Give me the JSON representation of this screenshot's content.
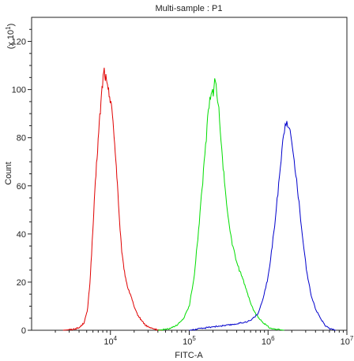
{
  "chart_data": {
    "type": "line",
    "title": "Multi-sample : P1",
    "xlabel": "FITC-A",
    "ylabel": "Count",
    "y_multiplier": {
      "prefix": "(x 10",
      "exponent": "1",
      "suffix": ")"
    },
    "x_scale": "log",
    "xlim": [
      1000,
      10000000
    ],
    "ylim": [
      0,
      130
    ],
    "y_ticks": [
      0,
      20,
      40,
      60,
      80,
      100,
      120
    ],
    "x_ticks": [
      {
        "value": 10000,
        "base": "10",
        "exp": "4"
      },
      {
        "value": 100000,
        "base": "10",
        "exp": "5"
      },
      {
        "value": 1000000,
        "base": "10",
        "exp": "6"
      },
      {
        "value": 10000000,
        "base": "10",
        "exp": "7"
      }
    ],
    "grid": false,
    "series": [
      {
        "color": "#e00000",
        "points": [
          [
            2500,
            0
          ],
          [
            3200,
            0.3
          ],
          [
            4000,
            1
          ],
          [
            4600,
            3
          ],
          [
            5100,
            8
          ],
          [
            5500,
            20
          ],
          [
            5900,
            38
          ],
          [
            6300,
            55
          ],
          [
            6700,
            70
          ],
          [
            7200,
            85
          ],
          [
            7600,
            95
          ],
          [
            8000,
            104
          ],
          [
            8300,
            108
          ],
          [
            8700,
            105
          ],
          [
            9200,
            100
          ],
          [
            9700,
            98
          ],
          [
            10300,
            95
          ],
          [
            10800,
            85
          ],
          [
            11500,
            75
          ],
          [
            12300,
            60
          ],
          [
            13200,
            42
          ],
          [
            14200,
            30
          ],
          [
            15500,
            22
          ],
          [
            16800,
            17
          ],
          [
            18400,
            14
          ],
          [
            20300,
            9
          ],
          [
            22500,
            6
          ],
          [
            25000,
            4
          ],
          [
            28000,
            2
          ],
          [
            32000,
            1
          ],
          [
            38000,
            0.3
          ],
          [
            45000,
            0
          ]
        ]
      },
      {
        "color": "#00dd00",
        "points": [
          [
            40000,
            0
          ],
          [
            55000,
            0.5
          ],
          [
            70000,
            2
          ],
          [
            85000,
            5
          ],
          [
            100000,
            10
          ],
          [
            115000,
            22
          ],
          [
            130000,
            40
          ],
          [
            145000,
            58
          ],
          [
            160000,
            75
          ],
          [
            172000,
            88
          ],
          [
            182000,
            96
          ],
          [
            192000,
            100
          ],
          [
            202000,
            98
          ],
          [
            212000,
            103
          ],
          [
            222000,
            100
          ],
          [
            232000,
            96
          ],
          [
            245000,
            85
          ],
          [
            265000,
            70
          ],
          [
            290000,
            56
          ],
          [
            320000,
            44
          ],
          [
            360000,
            34
          ],
          [
            410000,
            27
          ],
          [
            470000,
            22
          ],
          [
            530000,
            17
          ],
          [
            590000,
            12
          ],
          [
            660000,
            8
          ],
          [
            760000,
            5
          ],
          [
            880000,
            3
          ],
          [
            1050000,
            1
          ],
          [
            1300000,
            0.3
          ],
          [
            1600000,
            0
          ]
        ]
      },
      {
        "color": "#0000cc",
        "points": [
          [
            100000,
            0
          ],
          [
            150000,
            0.8
          ],
          [
            200000,
            1.5
          ],
          [
            300000,
            2
          ],
          [
            450000,
            3
          ],
          [
            600000,
            4
          ],
          [
            750000,
            7
          ],
          [
            880000,
            14
          ],
          [
            1000000,
            22
          ],
          [
            1130000,
            35
          ],
          [
            1270000,
            50
          ],
          [
            1400000,
            65
          ],
          [
            1530000,
            78
          ],
          [
            1640000,
            86
          ],
          [
            1740000,
            88
          ],
          [
            1840000,
            84
          ],
          [
            1950000,
            80
          ],
          [
            2080000,
            74
          ],
          [
            2250000,
            65
          ],
          [
            2480000,
            52
          ],
          [
            2770000,
            38
          ],
          [
            3100000,
            24
          ],
          [
            3500000,
            15
          ],
          [
            4000000,
            9
          ],
          [
            4600000,
            5
          ],
          [
            5300000,
            2
          ],
          [
            6200000,
            0.5
          ],
          [
            7200000,
            0
          ]
        ]
      }
    ]
  }
}
